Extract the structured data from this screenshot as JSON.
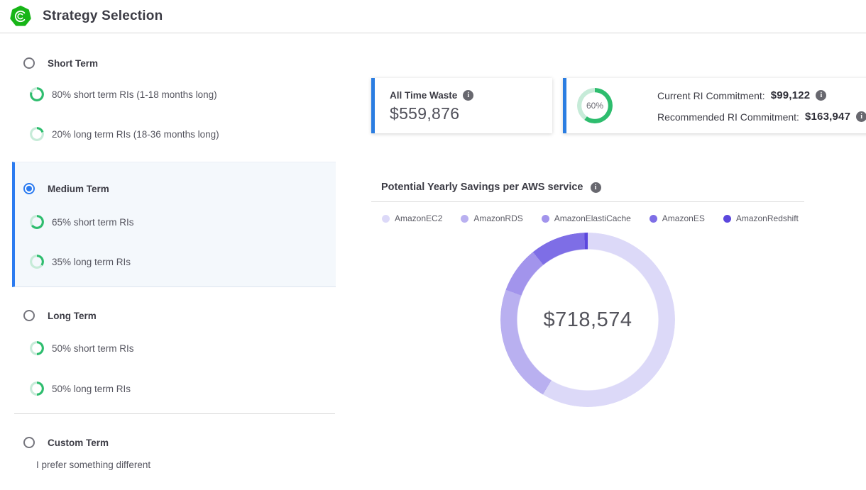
{
  "header": {
    "title": "Strategy Selection"
  },
  "strategies": [
    {
      "id": "short-term",
      "label": "Short Term",
      "selected": false,
      "items": [
        {
          "percent": 80,
          "label": "80% short term RIs (1-18 months long)"
        },
        {
          "percent": 20,
          "label": "20% long term RIs (18-36 months long)"
        }
      ]
    },
    {
      "id": "medium-term",
      "label": "Medium Term",
      "selected": true,
      "items": [
        {
          "percent": 65,
          "label": "65% short term RIs"
        },
        {
          "percent": 35,
          "label": "35% long term RIs"
        }
      ]
    },
    {
      "id": "long-term",
      "label": "Long Term",
      "selected": false,
      "items": [
        {
          "percent": 50,
          "label": "50% short term RIs"
        },
        {
          "percent": 50,
          "label": "50% long term RIs"
        }
      ]
    },
    {
      "id": "custom-term",
      "label": "Custom Term",
      "selected": false,
      "description": "I prefer something different",
      "items": []
    }
  ],
  "cards": {
    "waste": {
      "label": "All Time Waste",
      "value": "$559,876"
    },
    "commitment": {
      "gauge_percent": 60,
      "gauge_label": "60%",
      "current_label": "Current RI Commitment:",
      "current_value": "$99,122",
      "recommended_label": "Recommended RI Commitment:",
      "recommended_value": "$163,947"
    }
  },
  "chart_data": {
    "type": "pie",
    "subtype": "donut",
    "title": "Potential Yearly Savings per AWS service",
    "center_label": "$718,574",
    "legend_position": "top",
    "series": [
      {
        "name": "AmazonEC2",
        "percent": 58.6,
        "color": "#dcd9f8"
      },
      {
        "name": "AmazonRDS",
        "percent": 22.0,
        "color": "#b9b0f0"
      },
      {
        "name": "AmazonElastiCache",
        "percent": 8.6,
        "color": "#a294ec"
      },
      {
        "name": "AmazonES",
        "percent": 10.2,
        "color": "#7e6ee6"
      },
      {
        "name": "AmazonRedshift",
        "percent": 0.6,
        "color": "#5b47dd"
      }
    ]
  },
  "colors": {
    "accent_blue": "#2b7bf0",
    "green": "#2ebd6e",
    "green_light": "#c6ebd8",
    "logo_green": "#17b517",
    "info_icon_bg": "#68686f"
  }
}
